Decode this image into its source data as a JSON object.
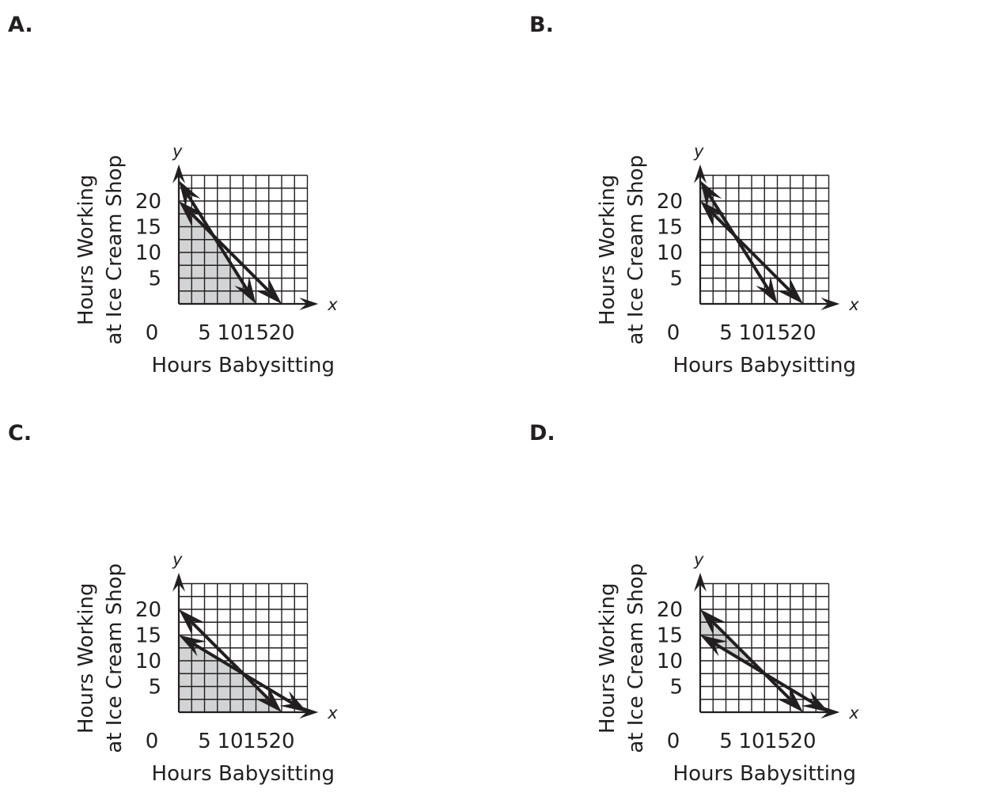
{
  "chart_data": [
    {
      "type": "line",
      "option": "A.",
      "xlabel": "Hours Babysitting",
      "ylabel_lines": [
        "Hours Working",
        "at Ice Cream Shop"
      ],
      "x_var": "x",
      "y_var": "y",
      "origin_label": "0",
      "xticks": [
        5,
        10,
        15,
        20
      ],
      "yticks": [
        5,
        10,
        15,
        20
      ],
      "xlim": [
        0,
        25
      ],
      "ylim": [
        0,
        25
      ],
      "lines": [
        {
          "from": [
            0,
            24
          ],
          "to": [
            15,
            0
          ]
        },
        {
          "from": [
            0,
            20
          ],
          "to": [
            20,
            0
          ]
        }
      ],
      "shaded_region": [
        [
          0,
          0
        ],
        [
          0,
          20
        ],
        [
          6.67,
          13.33
        ],
        [
          15,
          0
        ]
      ],
      "shade_color": "#d1d3d4"
    },
    {
      "type": "line",
      "option": "B.",
      "xlabel": "Hours Babysitting",
      "ylabel_lines": [
        "Hours Working",
        "at Ice Cream Shop"
      ],
      "x_var": "x",
      "y_var": "y",
      "origin_label": "0",
      "xticks": [
        5,
        10,
        15,
        20
      ],
      "yticks": [
        5,
        10,
        15,
        20
      ],
      "xlim": [
        0,
        25
      ],
      "ylim": [
        0,
        25
      ],
      "lines": [
        {
          "from": [
            0,
            24
          ],
          "to": [
            15,
            0
          ]
        },
        {
          "from": [
            0,
            20
          ],
          "to": [
            20,
            0
          ]
        }
      ],
      "shaded_region": [
        [
          0,
          24
        ],
        [
          0,
          20
        ],
        [
          6.67,
          13.33
        ]
      ],
      "shade_color": "#d1d3d4"
    },
    {
      "type": "line",
      "option": "C.",
      "xlabel": "Hours Babysitting",
      "ylabel_lines": [
        "Hours Working",
        "at Ice Cream Shop"
      ],
      "x_var": "x",
      "y_var": "y",
      "origin_label": "0",
      "xticks": [
        5,
        10,
        15,
        20
      ],
      "yticks": [
        5,
        10,
        15,
        20
      ],
      "xlim": [
        0,
        25
      ],
      "ylim": [
        0,
        25
      ],
      "lines": [
        {
          "from": [
            0,
            20
          ],
          "to": [
            20,
            0
          ]
        },
        {
          "from": [
            0,
            15
          ],
          "to": [
            25,
            0
          ]
        }
      ],
      "shaded_region": [
        [
          0,
          0
        ],
        [
          0,
          15
        ],
        [
          12.5,
          7.5
        ],
        [
          20,
          0
        ]
      ],
      "shade_color": "#d1d3d4"
    },
    {
      "type": "line",
      "option": "D.",
      "xlabel": "Hours Babysitting",
      "ylabel_lines": [
        "Hours Working",
        "at Ice Cream Shop"
      ],
      "x_var": "x",
      "y_var": "y",
      "origin_label": "0",
      "xticks": [
        5,
        10,
        15,
        20
      ],
      "yticks": [
        5,
        10,
        15,
        20
      ],
      "xlim": [
        0,
        25
      ],
      "ylim": [
        0,
        25
      ],
      "lines": [
        {
          "from": [
            0,
            20
          ],
          "to": [
            20,
            0
          ]
        },
        {
          "from": [
            0,
            15
          ],
          "to": [
            25,
            0
          ]
        }
      ],
      "shaded_region": [
        [
          0,
          20
        ],
        [
          0,
          15
        ],
        [
          12.5,
          7.5
        ]
      ],
      "shade_color": "#d1d3d4"
    }
  ]
}
